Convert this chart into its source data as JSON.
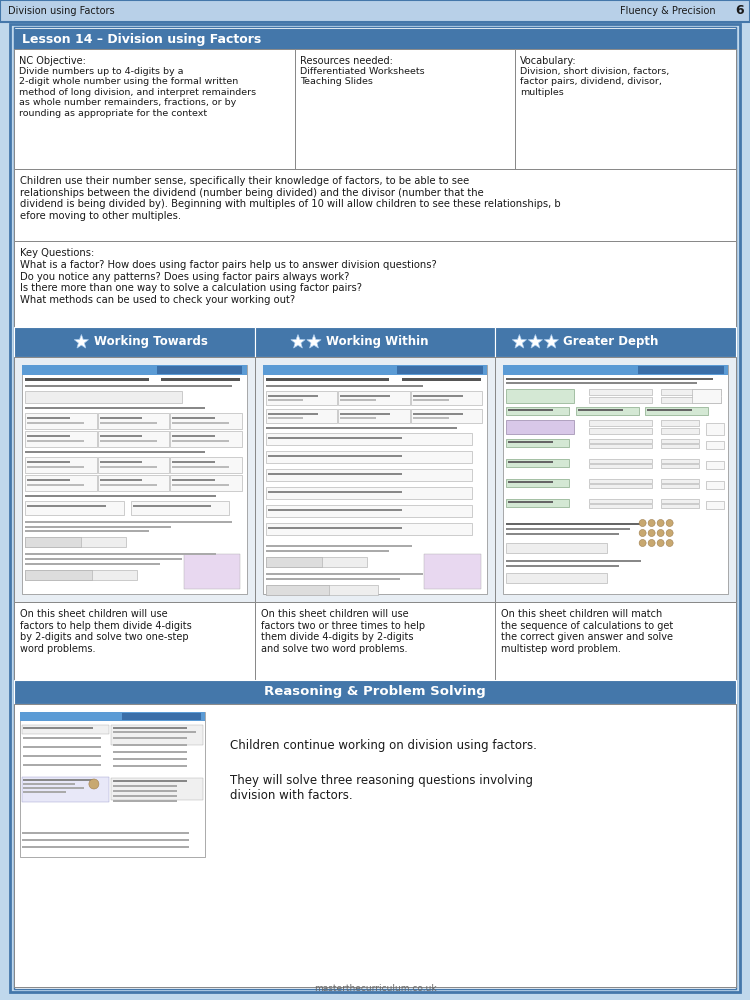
{
  "header_bg": "#b8d0e8",
  "header_text_left": "Division using Factors",
  "header_text_right": "Fluency & Precision",
  "header_number": "6",
  "outer_bg": "#c0d8ec",
  "inner_bg": "#ffffff",
  "lesson_title": "Lesson 14 – Division using Factors",
  "lesson_title_bg": "#4477aa",
  "lesson_title_color": "#ffffff",
  "nc_objective_title": "NC Objective:",
  "nc_objective_body": "Divide numbers up to 4-digits by a\n2-digit whole number using the formal written\nmethod of long division, and interpret remainders\nas whole number remainders, fractions, or by\nrounding as appropriate for the context",
  "resources_title": "Resources needed:",
  "resources_body": "Differentiated Worksheets\nTeaching Slides",
  "vocab_title": "Vocabulary:",
  "vocab_body": "Division, short division, factors,\nfactor pairs, dividend, divisor,\nmultiples",
  "context_text": "Children use their number sense, specifically their knowledge of factors, to be able to see\nrelationships between the dividend (number being divided) and the divisor (number that the\ndividend is being divided by). Beginning with multiples of 10 will allow children to see these relationships, b\nefore moving to other multiples.",
  "key_questions_title": "Key Questions:",
  "key_questions_body": "What is a factor? How does using factor pairs help us to answer division questions?\nDo you notice any patterns? Does using factor pairs always work?\nIs there more than one way to solve a calculation using factor pairs?\nWhat methods can be used to check your working out?",
  "stars_header_bg": "#4477aa",
  "stars_header_color": "#ffffff",
  "star1_label": "Working Towards",
  "star2_label": "Working Within",
  "star3_label": "Greater Depth",
  "sheet1_desc": "On this sheet children will use\nfactors to help them divide 4-digits\nby 2-digits and solve two one-step\nword problems.",
  "sheet2_desc": "On this sheet children will use\nfactors two or three times to help\nthem divide 4-digits by 2-digits\nand solve two word problems.",
  "sheet3_desc": "On this sheet children will match\nthe sequence of calculations to get\nthe correct given answer and solve\nmultistep word problem.",
  "reasoning_header": "Reasoning & Problem Solving",
  "reasoning_text_line1": "Children continue working on division using factors.",
  "reasoning_text_line2": "They will solve three reasoning questions involving\ndivision with factors.",
  "footer_text": "masterthecurriculum.co.uk",
  "border_color": "#4477aa",
  "table_border": "#888888",
  "light_border": "#aaaaaa",
  "font_color": "#1a1a1a",
  "ws_header_bg": "#5b9bd5",
  "ws_line_color": "#cccccc",
  "ws_box_bg": "#e8f4e8",
  "ws_purple_bg": "#d8b4d8",
  "ws_answer_bg": "#f0f0f0"
}
